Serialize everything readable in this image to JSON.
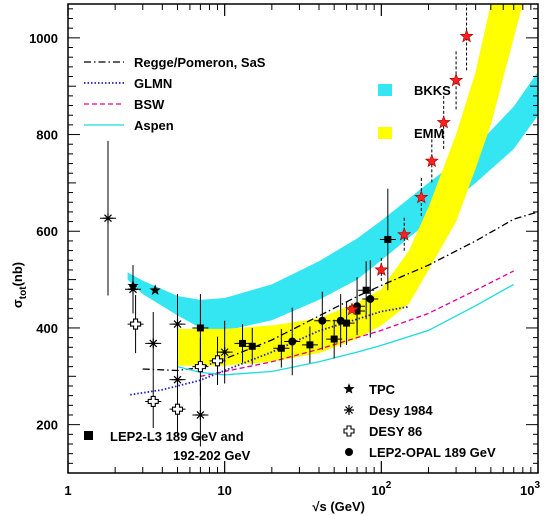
{
  "chart_data": {
    "type": "scatter",
    "x_scale": "log",
    "xlim": [
      1,
      1000
    ],
    "ylim": [
      100,
      1070
    ],
    "xlabel": "√s (GeV)",
    "ylabel": "σ_tot(nb)",
    "x_ticks": [
      {
        "value": 1,
        "label": "1"
      },
      {
        "value": 10,
        "label": "10"
      },
      {
        "value": 100,
        "label": "10",
        "sup": "2"
      },
      {
        "value": 1000,
        "label": "10",
        "sup": "3"
      }
    ],
    "y_ticks": [
      200,
      400,
      600,
      800,
      1000
    ],
    "bands": [
      {
        "name": "BKKS",
        "color": "#33e6f2",
        "upper": [
          [
            2.4,
            515
          ],
          [
            3,
            498
          ],
          [
            5,
            466
          ],
          [
            7,
            458
          ],
          [
            10,
            462
          ],
          [
            20,
            490
          ],
          [
            40,
            538
          ],
          [
            70,
            585
          ],
          [
            100,
            622
          ],
          [
            200,
            700
          ],
          [
            400,
            775
          ],
          [
            700,
            858
          ],
          [
            1000,
            930
          ]
        ],
        "lower": [
          [
            2.4,
            500
          ],
          [
            3,
            470
          ],
          [
            5,
            426
          ],
          [
            7,
            400
          ],
          [
            10,
            394
          ],
          [
            20,
            416
          ],
          [
            40,
            458
          ],
          [
            70,
            500
          ],
          [
            100,
            540
          ],
          [
            200,
            620
          ],
          [
            400,
            700
          ],
          [
            700,
            770
          ],
          [
            1000,
            840
          ]
        ]
      },
      {
        "name": "EMM",
        "color": "#ffff00",
        "upper": [
          [
            5,
            398
          ],
          [
            10,
            398
          ],
          [
            20,
            405
          ],
          [
            40,
            420
          ],
          [
            70,
            452
          ],
          [
            100,
            480
          ],
          [
            150,
            560
          ],
          [
            200,
            650
          ],
          [
            300,
            800
          ],
          [
            400,
            930
          ],
          [
            500,
            1070
          ]
        ],
        "lower": [
          [
            5,
            322
          ],
          [
            10,
            322
          ],
          [
            20,
            330
          ],
          [
            40,
            348
          ],
          [
            70,
            378
          ],
          [
            100,
            405
          ],
          [
            150,
            450
          ],
          [
            200,
            520
          ],
          [
            300,
            620
          ],
          [
            400,
            730
          ],
          [
            500,
            820
          ],
          [
            700,
            1000
          ],
          [
            800,
            1070
          ]
        ]
      }
    ],
    "series": [
      {
        "name": "Regge/Pomeron, SaS",
        "style": "dashdot",
        "color": "#000000",
        "points": [
          [
            3,
            315
          ],
          [
            5,
            312
          ],
          [
            7,
            318
          ],
          [
            10,
            336
          ],
          [
            20,
            375
          ],
          [
            40,
            425
          ],
          [
            70,
            465
          ],
          [
            100,
            488
          ],
          [
            200,
            530
          ],
          [
            400,
            580
          ],
          [
            700,
            625
          ],
          [
            1000,
            640
          ]
        ]
      },
      {
        "name": "GLMN",
        "style": "dotted",
        "color": "#2020c8",
        "points": [
          [
            2.5,
            262
          ],
          [
            4,
            272
          ],
          [
            7,
            292
          ],
          [
            10,
            312
          ],
          [
            20,
            350
          ],
          [
            40,
            394
          ],
          [
            70,
            418
          ],
          [
            100,
            434
          ],
          [
            150,
            444
          ]
        ]
      },
      {
        "name": "BSW",
        "style": "dashed",
        "color": "#e0009a",
        "points": [
          [
            7,
            300
          ],
          [
            10,
            310
          ],
          [
            20,
            330
          ],
          [
            40,
            356
          ],
          [
            70,
            380
          ],
          [
            100,
            395
          ],
          [
            200,
            430
          ],
          [
            400,
            478
          ],
          [
            700,
            518
          ]
        ]
      },
      {
        "name": "Aspen",
        "style": "solid",
        "color": "#1adcdc",
        "points": [
          [
            5,
            320
          ],
          [
            7,
            308
          ],
          [
            10,
            303
          ],
          [
            20,
            310
          ],
          [
            40,
            330
          ],
          [
            70,
            350
          ],
          [
            100,
            364
          ],
          [
            200,
            395
          ],
          [
            400,
            446
          ],
          [
            700,
            490
          ]
        ]
      }
    ],
    "datasets": [
      {
        "name": "TPC",
        "marker": "star",
        "points": [
          [
            2.6,
            487,
            0
          ],
          [
            3.6,
            478,
            0
          ]
        ]
      },
      {
        "name": "Desy 1984",
        "marker": "asterisk",
        "points": [
          [
            1.8,
            627,
            160
          ],
          [
            2.6,
            480,
            50
          ],
          [
            3.5,
            368,
            65
          ],
          [
            5,
            408,
            62
          ],
          [
            5,
            293,
            58
          ],
          [
            7,
            220,
            65
          ],
          [
            10,
            350,
            65
          ]
        ]
      },
      {
        "name": "DESY 86",
        "marker": "open-cross",
        "points": [
          [
            2.7,
            408,
            60
          ],
          [
            3.5,
            248,
            55
          ],
          [
            5,
            232,
            58
          ],
          [
            7,
            320,
            60
          ],
          [
            9,
            332,
            50
          ]
        ]
      },
      {
        "name": "LEP2-L3 189 GeV and 192-202 GeV",
        "marker": "filled-square",
        "points": [
          [
            7,
            400,
            70
          ],
          [
            13,
            368,
            40
          ],
          [
            15,
            362,
            38
          ],
          [
            23,
            358,
            40
          ],
          [
            35,
            365,
            38
          ],
          [
            50,
            377,
            40
          ],
          [
            60,
            410,
            45
          ],
          [
            70,
            435,
            45
          ],
          [
            80,
            478,
            60
          ],
          [
            110,
            583,
            105
          ]
        ]
      },
      {
        "name": "LEP2-OPAL 189 GeV",
        "marker": "filled-circle",
        "points": [
          [
            27,
            372,
            70
          ],
          [
            42,
            415,
            60
          ],
          [
            55,
            415,
            55
          ],
          [
            70,
            445,
            60
          ],
          [
            85,
            460,
            80
          ]
        ]
      },
      {
        "name": "stars",
        "marker": "red-star",
        "points": [
          [
            65,
            438,
            0
          ],
          [
            100,
            520,
            25
          ],
          [
            140,
            593,
            35
          ],
          [
            180,
            670,
            40
          ],
          [
            210,
            745,
            45
          ],
          [
            250,
            825,
            55
          ],
          [
            300,
            912,
            60
          ],
          [
            350,
            1003,
            70
          ]
        ]
      }
    ],
    "legend": {
      "position": "top-left",
      "band_labels": [
        "BKKS",
        "EMM"
      ],
      "line_labels": [
        "Regge/Pomeron, SaS",
        "GLMN",
        "BSW",
        "Aspen"
      ],
      "marker_labels": [
        "TPC",
        "Desy 1984",
        "DESY 86",
        "LEP2-OPAL 189 GeV"
      ],
      "l3_label_line1": "LEP2-L3 189 GeV and",
      "l3_label_line2": "192-202 GeV"
    }
  }
}
